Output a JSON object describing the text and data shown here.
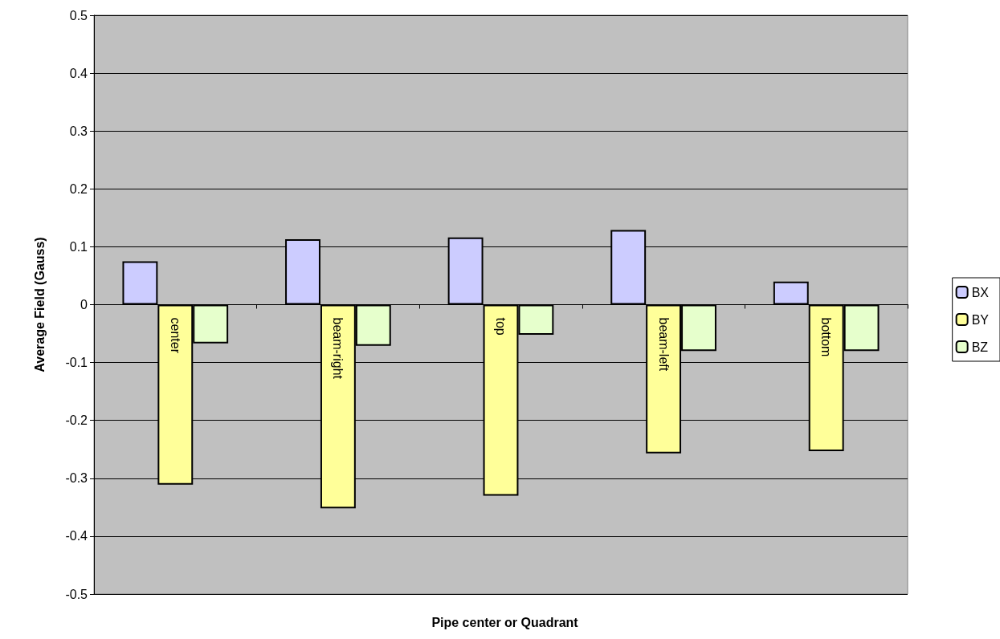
{
  "chart_data": {
    "type": "bar",
    "xlabel": "Pipe center or Quadrant",
    "ylabel": "Average Field (Gauss)",
    "categories": [
      "center",
      "beam-right",
      "top",
      "beam-left",
      "bottom"
    ],
    "series": [
      {
        "name": "BX",
        "color": "#ccccff",
        "values": [
          0.075,
          0.113,
          0.116,
          0.129,
          0.04
        ]
      },
      {
        "name": "BY",
        "color": "#ffff99",
        "values": [
          -0.311,
          -0.352,
          -0.33,
          -0.257,
          -0.253
        ]
      },
      {
        "name": "BZ",
        "color": "#e6ffcc",
        "values": [
          -0.067,
          -0.071,
          -0.052,
          -0.08,
          -0.08
        ]
      }
    ],
    "ylim": [
      -0.5,
      0.5
    ],
    "yticks": [
      -0.5,
      -0.4,
      -0.3,
      -0.2,
      -0.1,
      0,
      0.1,
      0.2,
      0.3,
      0.4,
      0.5
    ],
    "grid": "y",
    "legend": "right"
  }
}
